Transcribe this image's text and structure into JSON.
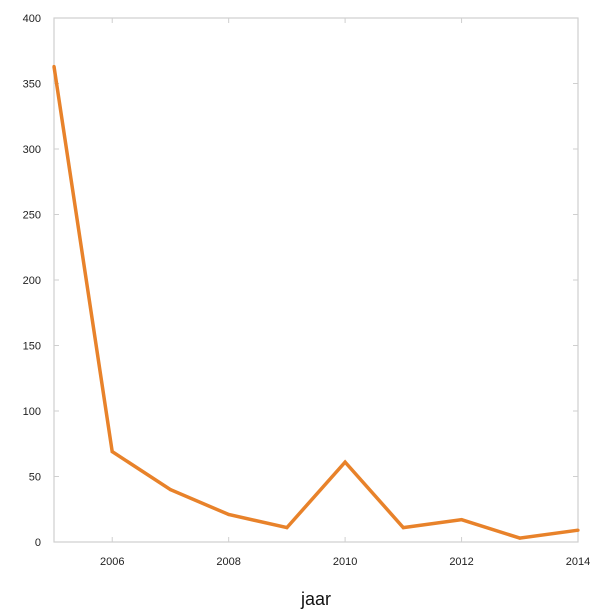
{
  "chart_data": {
    "type": "line",
    "title": "",
    "xlabel": "jaar",
    "ylabel": "",
    "x": [
      2005,
      2006,
      2007,
      2008,
      2009,
      2010,
      2011,
      2012,
      2013,
      2014
    ],
    "series": [
      {
        "name": "",
        "values": [
          363,
          69,
          40,
          21,
          11,
          61,
          11,
          17,
          3,
          9
        ]
      }
    ],
    "xlim": [
      2005,
      2014
    ],
    "ylim": [
      0,
      400
    ],
    "x_ticks": [
      "2006",
      "2008",
      "2010",
      "2012",
      "2014"
    ],
    "y_ticks": [
      "0",
      "50",
      "100",
      "150",
      "200",
      "250",
      "300",
      "350",
      "400"
    ],
    "grid": false,
    "line_color": "#e8822a",
    "axis_color": "#cfcfcf"
  }
}
